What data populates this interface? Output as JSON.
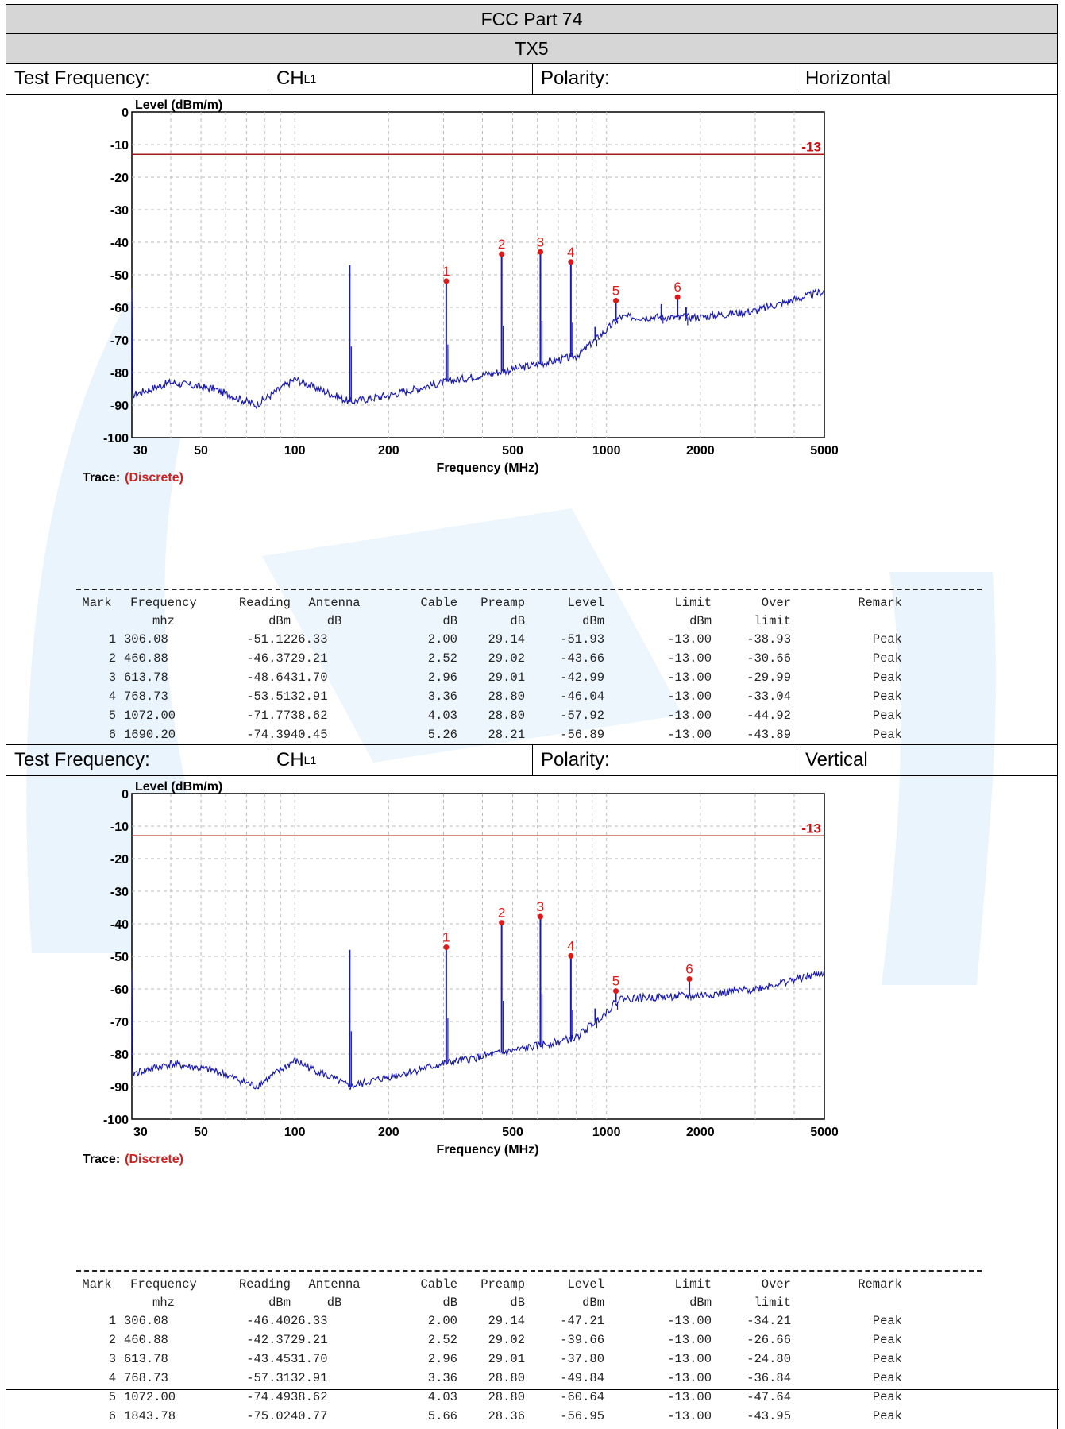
{
  "header": {
    "standard": "FCC Part 74",
    "transmitter": "TX5"
  },
  "colors": {
    "trace": "#1b1bb0",
    "limit_line": "#a11b1b",
    "marker": "#e01818",
    "grid": "#bbbbbb",
    "header_band": "#d6d6d6",
    "watermark": "#e6f2fb"
  },
  "sections": [
    {
      "info": {
        "test_frequency_label": "Test Frequency:",
        "channel_main": "CH",
        "channel_sub": "L1",
        "polarity_label": "Polarity:",
        "polarity_value": "Horizontal"
      },
      "chart_labels": {
        "ylabel": "Level (dBm/m)",
        "xlabel": "Frequency (MHz)",
        "limit_label": "-13",
        "trace_label": "Trace:",
        "trace_value": "(Discrete)"
      },
      "table_headers": [
        "Mark",
        "Frequency",
        "Reading",
        "Antenna",
        "Cable",
        "Preamp",
        "Level",
        "Limit",
        "Over",
        "Remark"
      ],
      "table_units": [
        "",
        "mhz",
        "dBm",
        "dB",
        "dB",
        "dB",
        "dBm",
        "dBm",
        "limit",
        ""
      ],
      "rows": [
        [
          "1",
          "306.08",
          "-51.12",
          "26.33",
          "2.00",
          "29.14",
          "-51.93",
          "-13.00",
          "-38.93",
          "Peak"
        ],
        [
          "2",
          "460.88",
          "-46.37",
          "29.21",
          "2.52",
          "29.02",
          "-43.66",
          "-13.00",
          "-30.66",
          "Peak"
        ],
        [
          "3",
          "613.78",
          "-48.64",
          "31.70",
          "2.96",
          "29.01",
          "-42.99",
          "-13.00",
          "-29.99",
          "Peak"
        ],
        [
          "4",
          "768.73",
          "-53.51",
          "32.91",
          "3.36",
          "28.80",
          "-46.04",
          "-13.00",
          "-33.04",
          "Peak"
        ],
        [
          "5",
          "1072.00",
          "-71.77",
          "38.62",
          "4.03",
          "28.80",
          "-57.92",
          "-13.00",
          "-44.92",
          "Peak"
        ],
        [
          "6",
          "1690.20",
          "-74.39",
          "40.45",
          "5.26",
          "28.21",
          "-56.89",
          "-13.00",
          "-43.89",
          "Peak"
        ]
      ]
    },
    {
      "info": {
        "test_frequency_label": "Test Frequency:",
        "channel_main": "CH",
        "channel_sub": "L1",
        "polarity_label": "Polarity:",
        "polarity_value": "Vertical"
      },
      "chart_labels": {
        "ylabel": "Level (dBm/m)",
        "xlabel": "Frequency (MHz)",
        "limit_label": "-13",
        "trace_label": "Trace:",
        "trace_value": "(Discrete)"
      },
      "table_headers": [
        "Mark",
        "Frequency",
        "Reading",
        "Antenna",
        "Cable",
        "Preamp",
        "Level",
        "Limit",
        "Over",
        "Remark"
      ],
      "table_units": [
        "",
        "mhz",
        "dBm",
        "dB",
        "dB",
        "dB",
        "dBm",
        "dBm",
        "limit",
        ""
      ],
      "rows": [
        [
          "1",
          "306.08",
          "-46.40",
          "26.33",
          "2.00",
          "29.14",
          "-47.21",
          "-13.00",
          "-34.21",
          "Peak"
        ],
        [
          "2",
          "460.88",
          "-42.37",
          "29.21",
          "2.52",
          "29.02",
          "-39.66",
          "-13.00",
          "-26.66",
          "Peak"
        ],
        [
          "3",
          "613.78",
          "-43.45",
          "31.70",
          "2.96",
          "29.01",
          "-37.80",
          "-13.00",
          "-24.80",
          "Peak"
        ],
        [
          "4",
          "768.73",
          "-57.31",
          "32.91",
          "3.36",
          "28.80",
          "-49.84",
          "-13.00",
          "-36.84",
          "Peak"
        ],
        [
          "5",
          "1072.00",
          "-74.49",
          "38.62",
          "4.03",
          "28.80",
          "-60.64",
          "-13.00",
          "-47.64",
          "Peak"
        ],
        [
          "6",
          "1843.78",
          "-75.02",
          "40.77",
          "5.66",
          "28.36",
          "-56.95",
          "-13.00",
          "-43.95",
          "Peak"
        ]
      ]
    }
  ],
  "chart_data": [
    {
      "type": "line",
      "title": "",
      "xlabel": "Frequency (MHz)",
      "ylabel": "Level (dBm/m)",
      "xscale": "log",
      "xlim": [
        30,
        5000
      ],
      "ylim": [
        -100,
        0
      ],
      "grid": true,
      "x_ticks": [
        30,
        50,
        100,
        200,
        500,
        1000,
        2000,
        5000
      ],
      "y_ticks": [
        0,
        -10,
        -20,
        -30,
        -40,
        -50,
        -60,
        -70,
        -80,
        -90,
        -100
      ],
      "limit": -13,
      "markers": [
        {
          "label": "1",
          "x": 306.08,
          "y": -51.93
        },
        {
          "label": "2",
          "x": 460.88,
          "y": -43.66
        },
        {
          "label": "3",
          "x": 613.78,
          "y": -42.99
        },
        {
          "label": "4",
          "x": 768.73,
          "y": -46.04
        },
        {
          "label": "5",
          "x": 1072.0,
          "y": -57.92
        },
        {
          "label": "6",
          "x": 1690.2,
          "y": -56.89
        }
      ],
      "noise_floor": [
        [
          30,
          -87
        ],
        [
          40,
          -83
        ],
        [
          55,
          -85
        ],
        [
          75,
          -90
        ],
        [
          100,
          -82
        ],
        [
          150,
          -89
        ],
        [
          200,
          -87
        ],
        [
          300,
          -83
        ],
        [
          500,
          -79
        ],
        [
          800,
          -75
        ],
        [
          1000,
          -67
        ],
        [
          1100,
          -63
        ],
        [
          2000,
          -63
        ],
        [
          3000,
          -61
        ],
        [
          5000,
          -55
        ]
      ],
      "spikes": [
        {
          "x": 150,
          "y": -47
        },
        {
          "x": 306.08,
          "y": -51.93
        },
        {
          "x": 460.88,
          "y": -43.66
        },
        {
          "x": 613.78,
          "y": -42.99
        },
        {
          "x": 768.73,
          "y": -46.04
        },
        {
          "x": 920,
          "y": -66
        },
        {
          "x": 1072.0,
          "y": -57.92
        },
        {
          "x": 1500,
          "y": -59
        },
        {
          "x": 1690.2,
          "y": -56.89
        },
        {
          "x": 1800,
          "y": -60
        }
      ]
    },
    {
      "type": "line",
      "title": "",
      "xlabel": "Frequency (MHz)",
      "ylabel": "Level (dBm/m)",
      "xscale": "log",
      "xlim": [
        30,
        5000
      ],
      "ylim": [
        -100,
        0
      ],
      "grid": true,
      "x_ticks": [
        30,
        50,
        100,
        200,
        500,
        1000,
        2000,
        5000
      ],
      "y_ticks": [
        0,
        -10,
        -20,
        -30,
        -40,
        -50,
        -60,
        -70,
        -80,
        -90,
        -100
      ],
      "limit": -13,
      "markers": [
        {
          "label": "1",
          "x": 306.08,
          "y": -47.21
        },
        {
          "label": "2",
          "x": 460.88,
          "y": -39.66
        },
        {
          "label": "3",
          "x": 613.78,
          "y": -37.8
        },
        {
          "label": "4",
          "x": 768.73,
          "y": -49.84
        },
        {
          "label": "5",
          "x": 1072.0,
          "y": -60.64
        },
        {
          "label": "6",
          "x": 1843.78,
          "y": -56.95
        }
      ],
      "noise_floor": [
        [
          30,
          -86
        ],
        [
          40,
          -83
        ],
        [
          55,
          -85
        ],
        [
          75,
          -90
        ],
        [
          100,
          -82
        ],
        [
          150,
          -90
        ],
        [
          200,
          -87
        ],
        [
          300,
          -83
        ],
        [
          500,
          -79
        ],
        [
          800,
          -75
        ],
        [
          1000,
          -67
        ],
        [
          1100,
          -63
        ],
        [
          2000,
          -62
        ],
        [
          3000,
          -60
        ],
        [
          5000,
          -55
        ]
      ],
      "spikes": [
        {
          "x": 150,
          "y": -48
        },
        {
          "x": 306.08,
          "y": -47.21
        },
        {
          "x": 460.88,
          "y": -39.66
        },
        {
          "x": 613.78,
          "y": -37.8
        },
        {
          "x": 768.73,
          "y": -49.84
        },
        {
          "x": 920,
          "y": -66
        },
        {
          "x": 1072.0,
          "y": -60.64
        },
        {
          "x": 1843.78,
          "y": -56.95
        }
      ]
    }
  ]
}
